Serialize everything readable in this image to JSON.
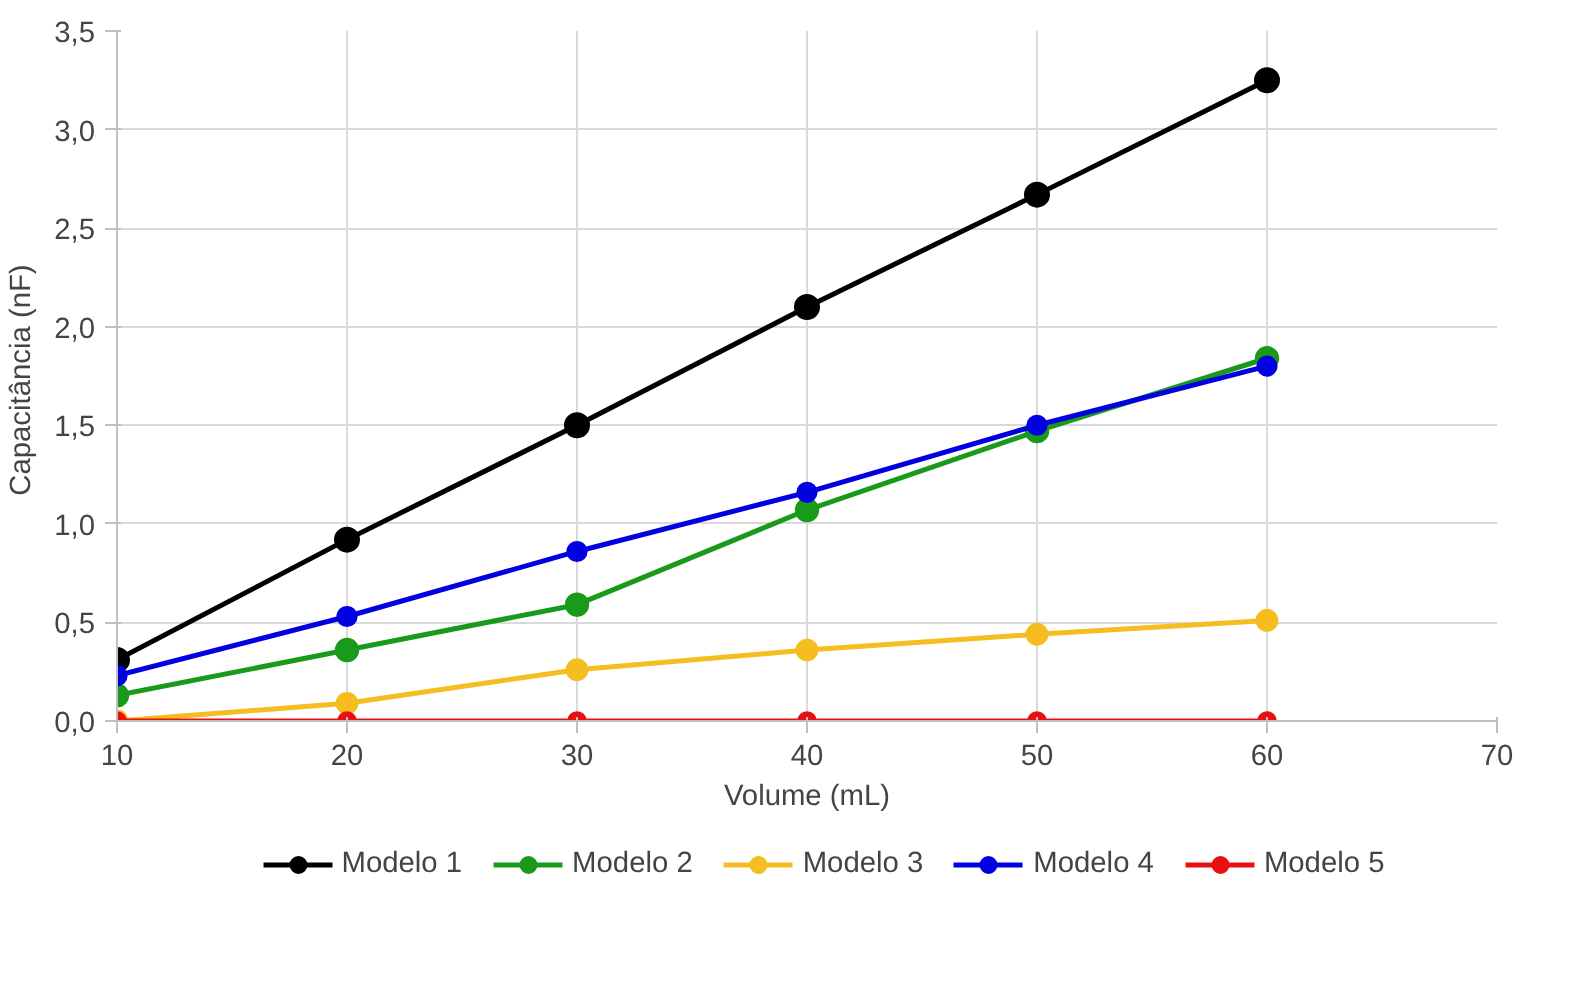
{
  "chart_data": {
    "type": "line",
    "xlabel": "Volume (mL)",
    "ylabel": "Capacitância  (nF)",
    "x": [
      10,
      20,
      30,
      40,
      50,
      60
    ],
    "series": [
      {
        "name": "Modelo 1",
        "color": "#000000",
        "values": [
          0.31,
          0.92,
          1.5,
          2.1,
          2.67,
          3.25
        ]
      },
      {
        "name": "Modelo 2",
        "color": "#1a9a1a",
        "values": [
          0.13,
          0.36,
          0.59,
          1.07,
          1.47,
          1.84
        ]
      },
      {
        "name": "Modelo 3",
        "color": "#f5bd1f",
        "values": [
          0.0,
          0.09,
          0.26,
          0.36,
          0.44,
          0.51
        ]
      },
      {
        "name": "Modelo 4",
        "color": "#0000e0",
        "values": [
          0.23,
          0.53,
          0.86,
          1.16,
          1.5,
          1.8
        ]
      },
      {
        "name": "Modelo 5",
        "color": "#e81010",
        "values": [
          0,
          0,
          0,
          0,
          0,
          0
        ]
      }
    ],
    "xlim": [
      10,
      70
    ],
    "xticks": [
      10,
      20,
      30,
      40,
      50,
      60,
      70
    ],
    "ylim": [
      0,
      3.5
    ],
    "yticks": [
      {
        "value": 0,
        "label": "0,0"
      },
      {
        "value": 0.5,
        "label": "0,5"
      },
      {
        "value": 1,
        "label": "1,0"
      },
      {
        "value": 1.5,
        "label": "1,5"
      },
      {
        "value": 2,
        "label": "2,0"
      },
      {
        "value": 2.5,
        "label": "2,5"
      },
      {
        "value": 3,
        "label": "3,0"
      },
      {
        "value": 3.5,
        "label": "3,5"
      }
    ],
    "grid": true,
    "legend": "bottom",
    "marker": "circle",
    "line_style": "solid"
  }
}
